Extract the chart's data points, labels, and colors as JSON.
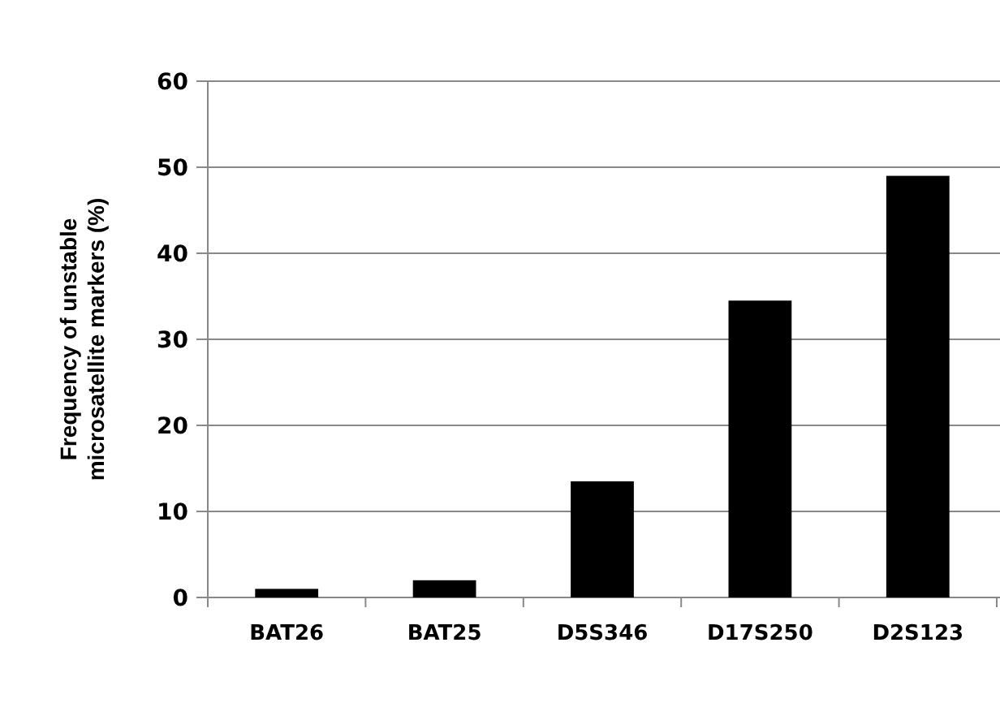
{
  "chart_data": {
    "type": "bar",
    "ylabel": "Frequency of unstable microsatellite markers (%)",
    "categories": [
      "BAT26",
      "BAT25",
      "D5S346",
      "D17S250",
      "D2S123"
    ],
    "values": [
      1,
      2,
      13.5,
      34.5,
      49
    ],
    "color": "#000000",
    "ylim": [
      0,
      60
    ],
    "yticks": [
      0,
      10,
      20,
      30,
      40,
      50,
      60
    ],
    "grid": "y"
  }
}
